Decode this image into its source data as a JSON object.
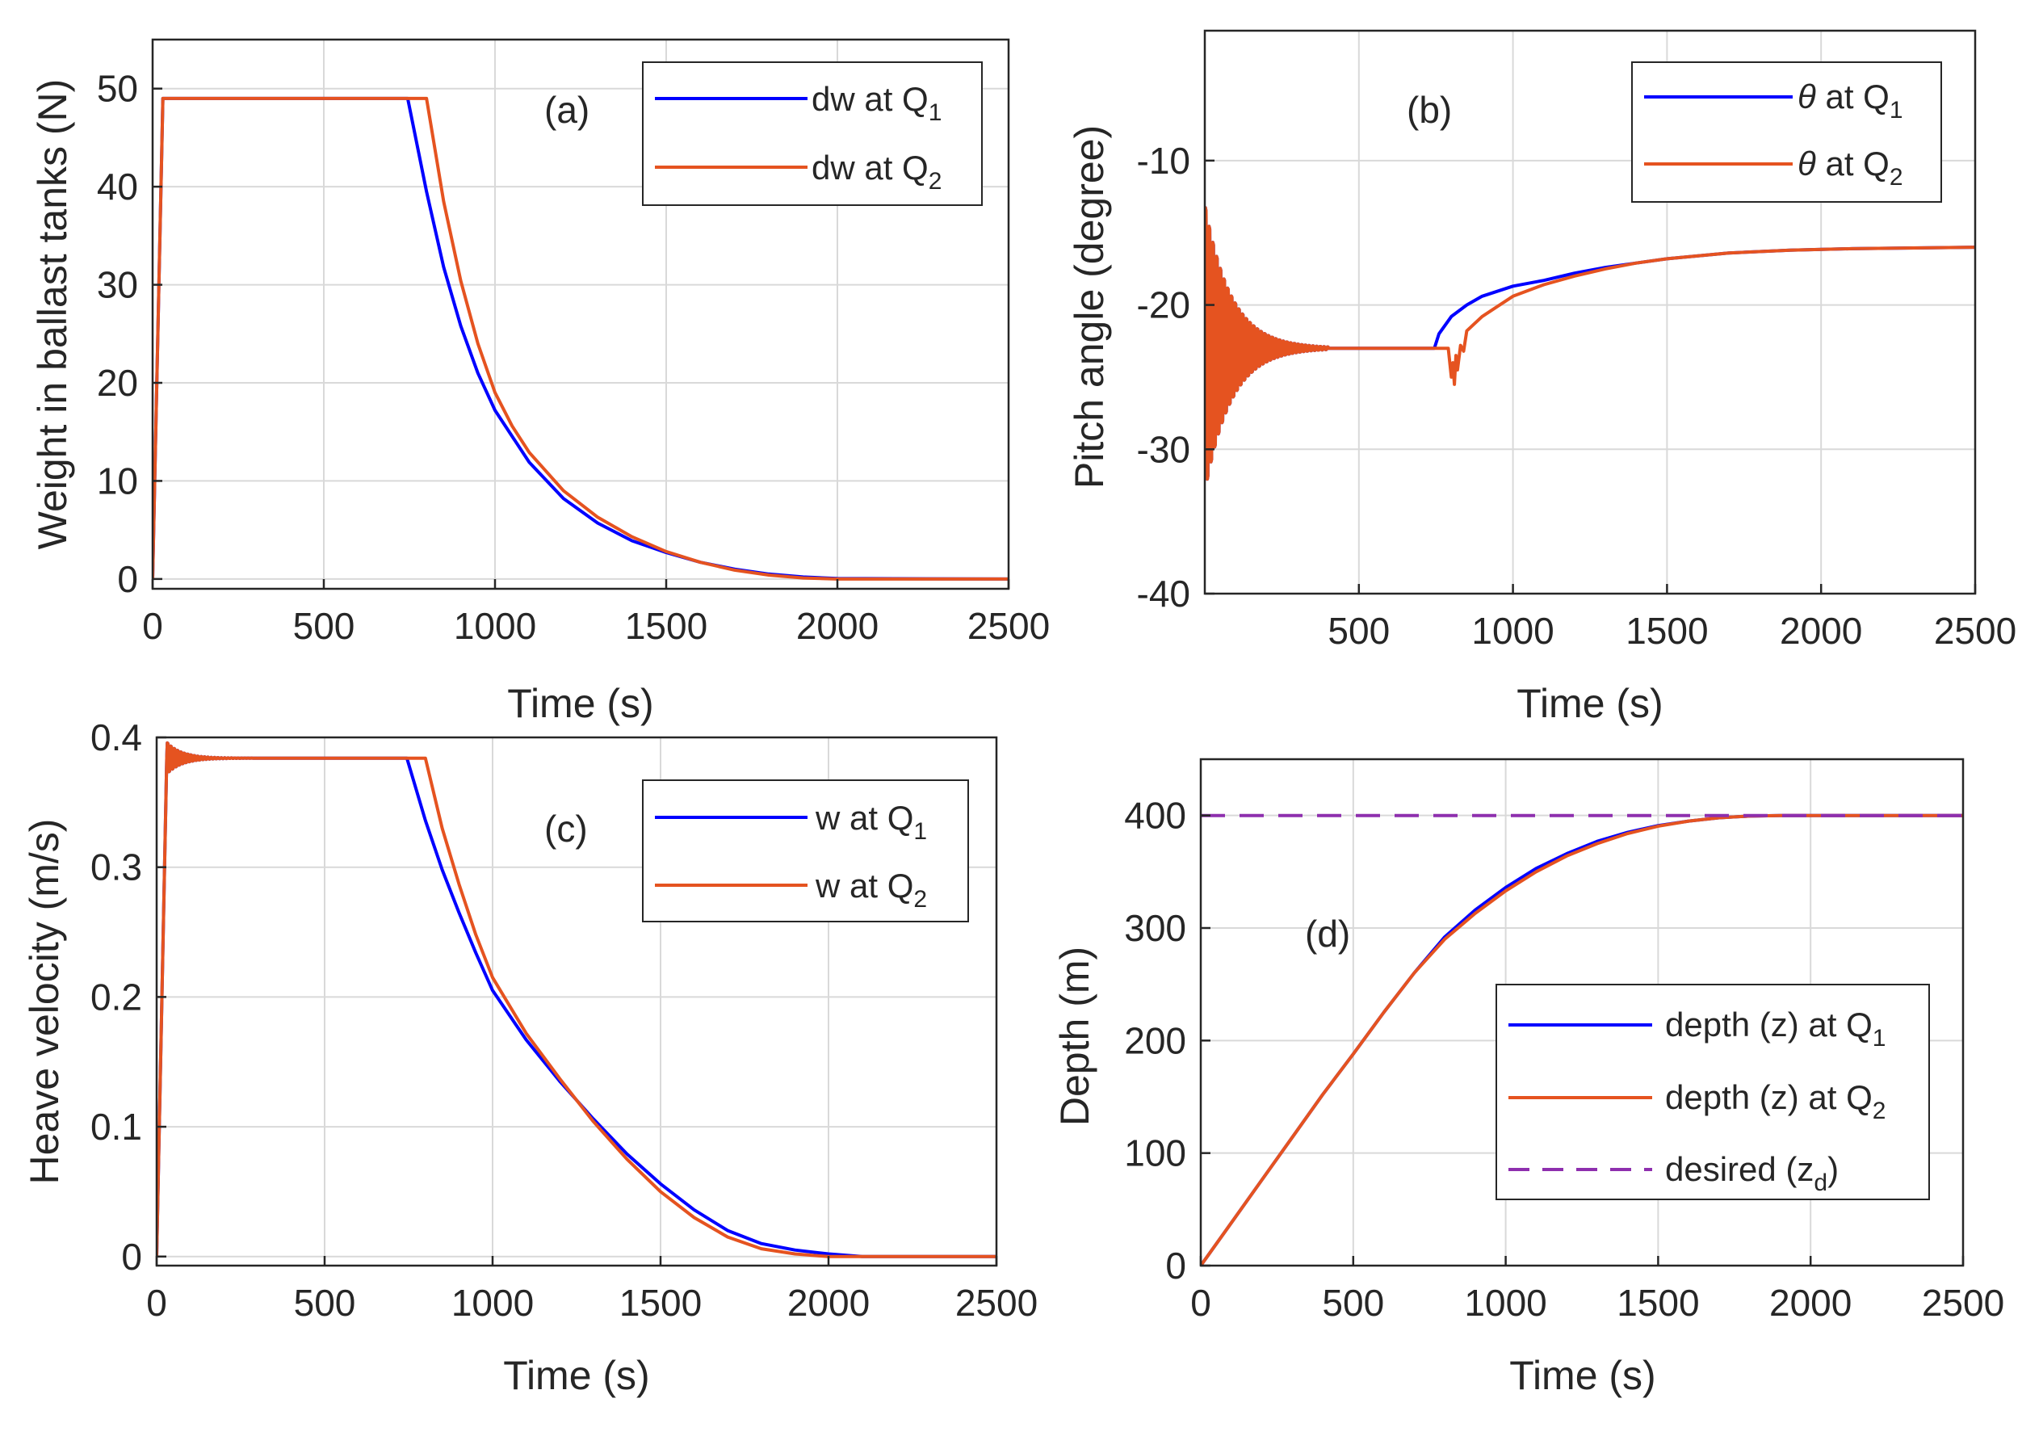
{
  "figure_title": "",
  "colors": {
    "q1": "#0000ff",
    "q2": "#e55320",
    "desired": "#8e2fae",
    "grid": "#d9d9d9",
    "axis": "#262626"
  },
  "chart_data": [
    {
      "id": "a",
      "type": "line",
      "panel_label": "(a)",
      "xlabel": "Time (s)",
      "ylabel": "Weight in ballast tanks (N)",
      "xlim": [
        0,
        2500
      ],
      "ylim": [
        -1,
        55
      ],
      "xticks": [
        "0",
        "500",
        "1000",
        "1500",
        "2000",
        "2500"
      ],
      "yticks": [
        "0",
        "10",
        "20",
        "30",
        "40",
        "50"
      ],
      "xtick_values": [
        0,
        500,
        1000,
        1500,
        2000,
        2500
      ],
      "ytick_values": [
        0,
        10,
        20,
        30,
        40,
        50
      ],
      "grid": true,
      "legend_position": "top-right",
      "series": [
        {
          "name": "dw at Q1",
          "label": "dw at Q",
          "sub": "1",
          "color": "#0000ff",
          "dashed": false,
          "points": [
            [
              0,
              0
            ],
            [
              30,
              49
            ],
            [
              745,
              49
            ],
            [
              800,
              39.5
            ],
            [
              850,
              31.8
            ],
            [
              900,
              25.8
            ],
            [
              950,
              21
            ],
            [
              1000,
              17.2
            ],
            [
              1100,
              11.9
            ],
            [
              1200,
              8.2
            ],
            [
              1300,
              5.7
            ],
            [
              1400,
              3.9
            ],
            [
              1500,
              2.7
            ],
            [
              1600,
              1.7
            ],
            [
              1700,
              1
            ],
            [
              1800,
              0.5
            ],
            [
              1900,
              0.2
            ],
            [
              2000,
              0.05
            ],
            [
              2500,
              0
            ]
          ]
        },
        {
          "name": "dw at Q2",
          "label": "dw at Q",
          "sub": "2",
          "color": "#e55320",
          "dashed": false,
          "points": [
            [
              0,
              0
            ],
            [
              30,
              49
            ],
            [
              800,
              49
            ],
            [
              850,
              38.5
            ],
            [
              900,
              30.4
            ],
            [
              950,
              24
            ],
            [
              1000,
              19
            ],
            [
              1050,
              15.6
            ],
            [
              1100,
              12.9
            ],
            [
              1200,
              9
            ],
            [
              1300,
              6.3
            ],
            [
              1400,
              4.3
            ],
            [
              1500,
              2.8
            ],
            [
              1600,
              1.7
            ],
            [
              1700,
              0.9
            ],
            [
              1800,
              0.4
            ],
            [
              1900,
              0.1
            ],
            [
              2000,
              0
            ],
            [
              2500,
              0
            ]
          ]
        }
      ]
    },
    {
      "id": "b",
      "type": "line",
      "panel_label": "(b)",
      "xlabel": "Time (s)",
      "ylabel": "Pitch angle (degree)",
      "xlim": [
        0,
        2500
      ],
      "ylim": [
        -40,
        -1
      ],
      "xticks": [
        "500",
        "1000",
        "1500",
        "2000",
        "2500"
      ],
      "yticks": [
        "-40",
        "-30",
        "-20",
        "-10"
      ],
      "xtick_values": [
        500,
        1000,
        1500,
        2000,
        2500
      ],
      "ytick_values": [
        -40,
        -30,
        -20,
        -10
      ],
      "grid": true,
      "legend_position": "top-right",
      "series": [
        {
          "name": "θ at Q1",
          "label": " at Q",
          "symbol": "θ",
          "sub": "1",
          "color": "#0000ff",
          "dashed": false,
          "oscillation": {
            "t_start": 0,
            "t_end": 400,
            "base": -23,
            "amp": 11.5,
            "decay": 85,
            "period": 12
          },
          "points": [
            [
              400,
              -23
            ],
            [
              745,
              -23
            ],
            [
              760,
              -22
            ],
            [
              800,
              -20.8
            ],
            [
              850,
              -20
            ],
            [
              900,
              -19.4
            ],
            [
              1000,
              -18.7
            ],
            [
              1100,
              -18.3
            ],
            [
              1200,
              -17.8
            ],
            [
              1300,
              -17.4
            ],
            [
              1400,
              -17.1
            ],
            [
              1500,
              -16.8
            ],
            [
              1700,
              -16.4
            ],
            [
              1900,
              -16.2
            ],
            [
              2100,
              -16.1
            ],
            [
              2500,
              -16
            ]
          ]
        },
        {
          "name": "θ at Q2",
          "label": " at Q",
          "symbol": "θ",
          "sub": "2",
          "color": "#e55320",
          "dashed": false,
          "oscillation": {
            "t_start": 0,
            "t_end": 400,
            "base": -23,
            "amp": 11.5,
            "decay": 85,
            "period": 12
          },
          "points": [
            [
              400,
              -23
            ],
            [
              790,
              -23
            ],
            [
              800,
              -25
            ],
            [
              805,
              -24
            ],
            [
              810,
              -25.5
            ],
            [
              815,
              -23.5
            ],
            [
              820,
              -24.5
            ],
            [
              830,
              -22.8
            ],
            [
              840,
              -23.2
            ],
            [
              850,
              -21.8
            ],
            [
              870,
              -21.4
            ],
            [
              900,
              -20.8
            ],
            [
              1000,
              -19.4
            ],
            [
              1100,
              -18.6
            ],
            [
              1200,
              -18
            ],
            [
              1300,
              -17.5
            ],
            [
              1400,
              -17.1
            ],
            [
              1500,
              -16.8
            ],
            [
              1700,
              -16.4
            ],
            [
              1900,
              -16.2
            ],
            [
              2100,
              -16.1
            ],
            [
              2500,
              -16
            ]
          ]
        }
      ]
    },
    {
      "id": "c",
      "type": "line",
      "panel_label": "(c)",
      "xlabel": "Time (s)",
      "ylabel": "Heave velocity (m/s)",
      "xlim": [
        0,
        2500
      ],
      "ylim": [
        -0.007,
        0.4
      ],
      "xticks": [
        "0",
        "500",
        "1000",
        "1500",
        "2000",
        "2500"
      ],
      "yticks": [
        "0",
        "0.1",
        "0.2",
        "0.3",
        "0.4"
      ],
      "xtick_values": [
        0,
        500,
        1000,
        1500,
        2000,
        2500
      ],
      "ytick_values": [
        0,
        0.1,
        0.2,
        0.3,
        0.4
      ],
      "grid": true,
      "legend_position": "top-right",
      "series": [
        {
          "name": "w at Q1",
          "label": "w at Q",
          "sub": "1",
          "color": "#0000ff",
          "dashed": false,
          "oscillation": {
            "t_start": 30,
            "t_end": 300,
            "base": 0.384,
            "amp": 0.014,
            "decay": 45,
            "period": 10
          },
          "points": [
            [
              0,
              0
            ],
            [
              30,
              0.37
            ],
            [
              300,
              0.384
            ],
            [
              745,
              0.384
            ],
            [
              800,
              0.336
            ],
            [
              850,
              0.298
            ],
            [
              900,
              0.265
            ],
            [
              950,
              0.234
            ],
            [
              1000,
              0.205
            ],
            [
              1100,
              0.167
            ],
            [
              1200,
              0.135
            ],
            [
              1300,
              0.106
            ],
            [
              1400,
              0.079
            ],
            [
              1500,
              0.056
            ],
            [
              1600,
              0.036
            ],
            [
              1700,
              0.02
            ],
            [
              1800,
              0.01
            ],
            [
              1900,
              0.005
            ],
            [
              2000,
              0.002
            ],
            [
              2100,
              0
            ],
            [
              2500,
              0
            ]
          ]
        },
        {
          "name": "w at Q2",
          "label": "w at Q",
          "sub": "2",
          "color": "#e55320",
          "dashed": false,
          "oscillation": {
            "t_start": 30,
            "t_end": 300,
            "base": 0.384,
            "amp": 0.014,
            "decay": 45,
            "period": 10
          },
          "points": [
            [
              0,
              0
            ],
            [
              30,
              0.37
            ],
            [
              300,
              0.384
            ],
            [
              800,
              0.384
            ],
            [
              850,
              0.33
            ],
            [
              900,
              0.287
            ],
            [
              950,
              0.248
            ],
            [
              1000,
              0.215
            ],
            [
              1100,
              0.172
            ],
            [
              1200,
              0.137
            ],
            [
              1300,
              0.104
            ],
            [
              1400,
              0.075
            ],
            [
              1500,
              0.05
            ],
            [
              1600,
              0.03
            ],
            [
              1700,
              0.015
            ],
            [
              1800,
              0.006
            ],
            [
              1900,
              0.002
            ],
            [
              2000,
              0
            ],
            [
              2500,
              0
            ]
          ]
        }
      ]
    },
    {
      "id": "d",
      "type": "line",
      "panel_label": "(d)",
      "xlabel": "Time (s)",
      "ylabel": "Depth (m)",
      "xlim": [
        0,
        2500
      ],
      "ylim": [
        0,
        450
      ],
      "xticks": [
        "0",
        "500",
        "1000",
        "1500",
        "2000",
        "2500"
      ],
      "yticks": [
        "0",
        "100",
        "200",
        "300",
        "400"
      ],
      "xtick_values": [
        0,
        500,
        1000,
        1500,
        2000,
        2500
      ],
      "ytick_values": [
        0,
        100,
        200,
        300,
        400
      ],
      "grid": true,
      "legend_position": "right",
      "series": [
        {
          "name": "depth (z) at Q1",
          "label": "depth (z) at Q",
          "sub": "1",
          "color": "#0000ff",
          "dashed": false,
          "points": [
            [
              0,
              0
            ],
            [
              100,
              38
            ],
            [
              200,
              76
            ],
            [
              300,
              114
            ],
            [
              400,
              152
            ],
            [
              500,
              188
            ],
            [
              600,
              225
            ],
            [
              700,
              260
            ],
            [
              800,
              292
            ],
            [
              900,
              316
            ],
            [
              1000,
              336
            ],
            [
              1100,
              353
            ],
            [
              1200,
              366
            ],
            [
              1300,
              377
            ],
            [
              1400,
              385
            ],
            [
              1500,
              391
            ],
            [
              1600,
              395
            ],
            [
              1700,
              398
            ],
            [
              1800,
              399.5
            ],
            [
              1900,
              400
            ],
            [
              2500,
              400
            ]
          ]
        },
        {
          "name": "depth (z) at Q2",
          "label": "depth (z) at Q",
          "sub": "2",
          "color": "#e55320",
          "dashed": false,
          "points": [
            [
              0,
              0
            ],
            [
              100,
              38
            ],
            [
              200,
              76
            ],
            [
              300,
              114
            ],
            [
              400,
              152
            ],
            [
              500,
              188
            ],
            [
              600,
              225
            ],
            [
              700,
              260
            ],
            [
              800,
              290
            ],
            [
              900,
              313
            ],
            [
              1000,
              333
            ],
            [
              1100,
              350
            ],
            [
              1200,
              364
            ],
            [
              1300,
              375
            ],
            [
              1400,
              384
            ],
            [
              1500,
              390.5
            ],
            [
              1600,
              395
            ],
            [
              1700,
              398
            ],
            [
              1800,
              399.5
            ],
            [
              1900,
              400
            ],
            [
              2500,
              400
            ]
          ]
        },
        {
          "name": "desired (zd)",
          "label": "desired (z",
          "sub": "d",
          "suffix": ")",
          "color": "#8e2fae",
          "dashed": true,
          "points": [
            [
              0,
              400
            ],
            [
              2500,
              400
            ]
          ]
        }
      ]
    }
  ]
}
